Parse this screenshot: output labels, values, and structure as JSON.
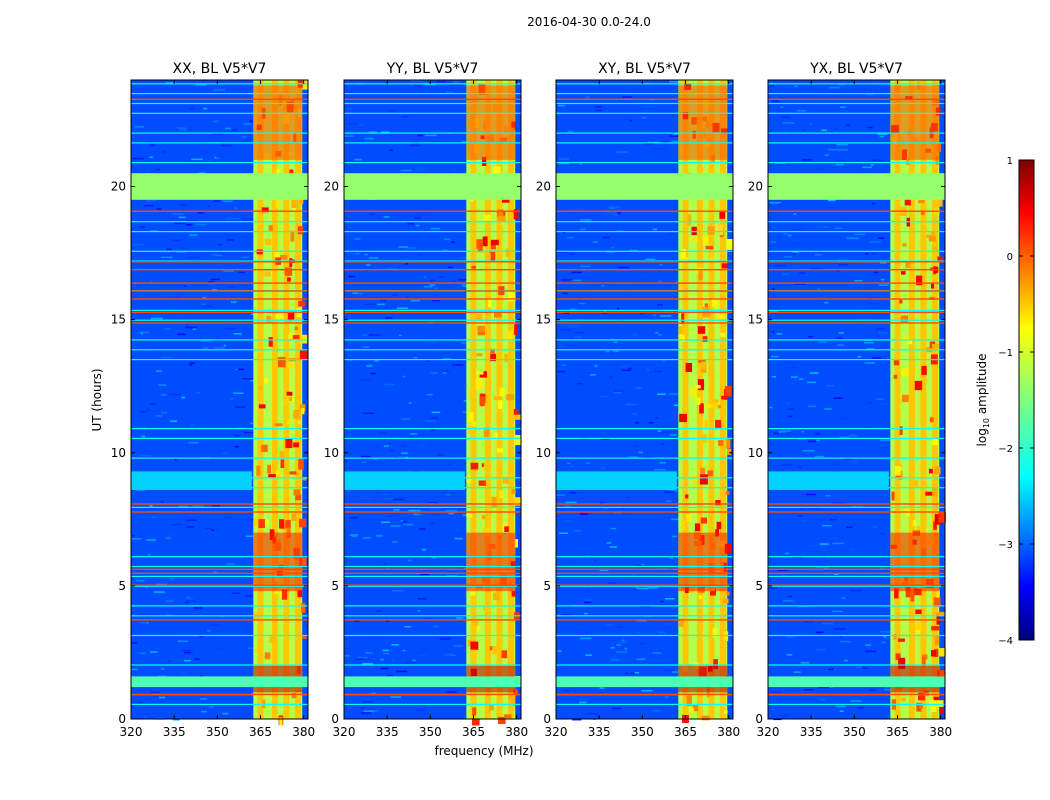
{
  "figure": {
    "suptitle": "2016-04-30 0.0-24.0"
  },
  "chart_data": [
    {
      "type": "heatmap",
      "title": "XX, BL V5*V7",
      "xlabel": "",
      "ylabel": "UT (hours)",
      "xlim": [
        320,
        381.5
      ],
      "ylim": [
        0,
        24
      ],
      "xticks": [
        320,
        335,
        350,
        365,
        380
      ],
      "yticks": [
        0,
        5,
        10,
        15,
        20
      ],
      "colorscale": "jet",
      "quantity": "log10 amplitude"
    },
    {
      "type": "heatmap",
      "title": "YY, BL V5*V7",
      "xlabel": "frequency (MHz)",
      "ylabel": "",
      "xlim": [
        320,
        381.5
      ],
      "ylim": [
        0,
        24
      ],
      "xticks": [
        320,
        335,
        350,
        365,
        380
      ],
      "yticks": [
        0,
        5,
        10,
        15,
        20
      ],
      "colorscale": "jet",
      "quantity": "log10 amplitude"
    },
    {
      "type": "heatmap",
      "title": "XY, BL V5*V7",
      "xlabel": "",
      "ylabel": "",
      "xlim": [
        320,
        381.5
      ],
      "ylim": [
        0,
        24
      ],
      "xticks": [
        320,
        335,
        350,
        365,
        380
      ],
      "yticks": [
        0,
        5,
        10,
        15,
        20
      ],
      "colorscale": "jet",
      "quantity": "log10 amplitude"
    },
    {
      "type": "heatmap",
      "title": "YX, BL V5*V7",
      "xlabel": "",
      "ylabel": "",
      "xlim": [
        320,
        381.5
      ],
      "ylim": [
        0,
        24
      ],
      "xticks": [
        320,
        335,
        350,
        365,
        380
      ],
      "yticks": [
        0,
        5,
        10,
        15,
        20
      ],
      "colorscale": "jet",
      "quantity": "log10 amplitude"
    }
  ],
  "colorbar": {
    "label_main": "log",
    "label_sub": "10",
    "label_rest": " amplitude",
    "vmin": -4,
    "vmax": 1,
    "ticks": [
      -4,
      -3,
      -2,
      -1,
      0,
      1
    ],
    "tick_labels": [
      "−4",
      "−3",
      "−2",
      "−1",
      "0",
      "1"
    ]
  },
  "colors": {
    "jet_low": "#00007f",
    "jet_blue": "#0000ff",
    "jet_cyan": "#00ffff",
    "jet_green": "#7fff7f",
    "jet_yellow": "#ffff00",
    "jet_red": "#ff0000",
    "jet_high": "#7f0000"
  }
}
